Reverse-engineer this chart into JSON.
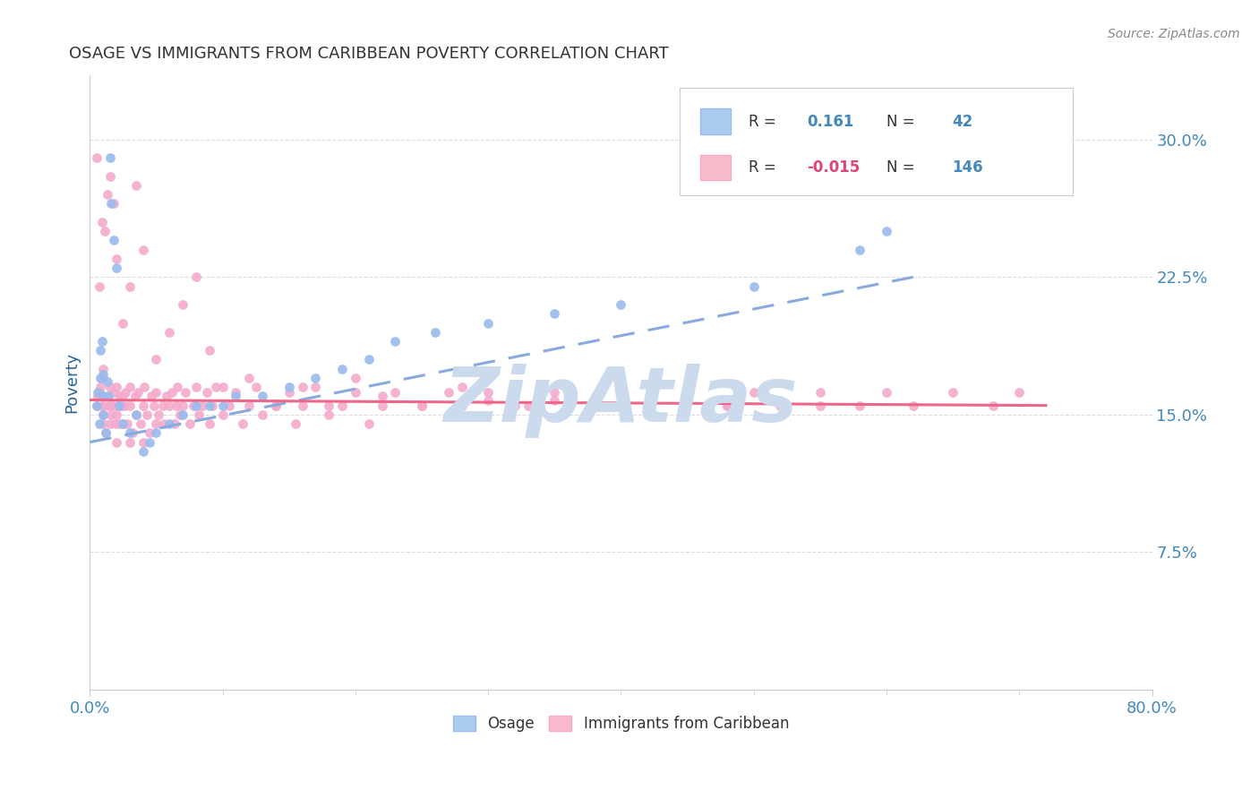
{
  "title": "OSAGE VS IMMIGRANTS FROM CARIBBEAN POVERTY CORRELATION CHART",
  "source": "Source: ZipAtlas.com",
  "ylabel": "Poverty",
  "ytick_labels": [
    "7.5%",
    "15.0%",
    "22.5%",
    "30.0%"
  ],
  "ytick_values": [
    0.075,
    0.15,
    0.225,
    0.3
  ],
  "xlim": [
    0.0,
    0.8
  ],
  "ylim": [
    0.0,
    0.335
  ],
  "title_color": "#333333",
  "source_color": "#888888",
  "axis_label_color": "#2A6496",
  "tick_color": "#4488BB",
  "blue_scatter_color": "#99BBEE",
  "pink_scatter_color": "#F4AACC",
  "blue_line_color": "#88AADD",
  "pink_line_color": "#EE6688",
  "blue_legend_fill": "#AACCEE",
  "pink_legend_fill": "#F9BBCC",
  "watermark_color": "#CCDAEE",
  "grid_color": "#DDDDDD",
  "spine_color": "#CCCCCC",
  "osage_x": [
    0.005,
    0.006,
    0.007,
    0.008,
    0.008,
    0.009,
    0.01,
    0.01,
    0.01,
    0.012,
    0.013,
    0.014,
    0.015,
    0.016,
    0.018,
    0.02,
    0.022,
    0.025,
    0.03,
    0.035,
    0.04,
    0.045,
    0.05,
    0.06,
    0.07,
    0.08,
    0.09,
    0.1,
    0.11,
    0.13,
    0.15,
    0.17,
    0.19,
    0.21,
    0.23,
    0.26,
    0.3,
    0.35,
    0.4,
    0.5,
    0.58,
    0.6
  ],
  "osage_y": [
    0.155,
    0.162,
    0.145,
    0.17,
    0.185,
    0.19,
    0.15,
    0.16,
    0.172,
    0.14,
    0.168,
    0.16,
    0.29,
    0.265,
    0.245,
    0.23,
    0.155,
    0.145,
    0.14,
    0.15,
    0.13,
    0.135,
    0.14,
    0.145,
    0.15,
    0.155,
    0.155,
    0.155,
    0.16,
    0.16,
    0.165,
    0.17,
    0.175,
    0.18,
    0.19,
    0.195,
    0.2,
    0.205,
    0.21,
    0.22,
    0.24,
    0.25
  ],
  "carib_x": [
    0.005,
    0.006,
    0.007,
    0.008,
    0.009,
    0.009,
    0.01,
    0.01,
    0.01,
    0.01,
    0.01,
    0.01,
    0.012,
    0.013,
    0.014,
    0.015,
    0.015,
    0.015,
    0.016,
    0.017,
    0.018,
    0.019,
    0.02,
    0.02,
    0.02,
    0.021,
    0.022,
    0.023,
    0.024,
    0.025,
    0.025,
    0.026,
    0.027,
    0.028,
    0.03,
    0.03,
    0.03,
    0.032,
    0.034,
    0.035,
    0.036,
    0.038,
    0.04,
    0.04,
    0.041,
    0.043,
    0.045,
    0.046,
    0.048,
    0.05,
    0.05,
    0.052,
    0.055,
    0.056,
    0.058,
    0.06,
    0.062,
    0.064,
    0.065,
    0.066,
    0.068,
    0.07,
    0.072,
    0.075,
    0.078,
    0.08,
    0.082,
    0.085,
    0.088,
    0.09,
    0.092,
    0.095,
    0.1,
    0.105,
    0.11,
    0.115,
    0.12,
    0.125,
    0.13,
    0.14,
    0.15,
    0.155,
    0.16,
    0.17,
    0.18,
    0.19,
    0.2,
    0.21,
    0.22,
    0.23,
    0.25,
    0.27,
    0.28,
    0.3,
    0.32,
    0.35,
    0.38,
    0.4,
    0.42,
    0.45,
    0.48,
    0.5,
    0.52,
    0.55,
    0.58,
    0.6,
    0.62,
    0.65,
    0.68,
    0.7,
    0.005,
    0.007,
    0.009,
    0.011,
    0.013,
    0.015,
    0.018,
    0.02,
    0.025,
    0.03,
    0.035,
    0.04,
    0.05,
    0.06,
    0.07,
    0.08,
    0.09,
    0.1,
    0.12,
    0.14,
    0.16,
    0.18,
    0.2,
    0.22,
    0.25,
    0.28,
    0.3,
    0.33,
    0.35,
    0.38,
    0.4,
    0.42,
    0.45,
    0.48,
    0.52,
    0.55
  ],
  "carib_y": [
    0.155,
    0.16,
    0.162,
    0.165,
    0.155,
    0.17,
    0.145,
    0.15,
    0.155,
    0.16,
    0.17,
    0.175,
    0.14,
    0.155,
    0.16,
    0.145,
    0.155,
    0.165,
    0.15,
    0.155,
    0.162,
    0.145,
    0.135,
    0.15,
    0.165,
    0.155,
    0.145,
    0.16,
    0.155,
    0.145,
    0.16,
    0.155,
    0.162,
    0.145,
    0.135,
    0.155,
    0.165,
    0.14,
    0.16,
    0.15,
    0.162,
    0.145,
    0.135,
    0.155,
    0.165,
    0.15,
    0.14,
    0.16,
    0.155,
    0.145,
    0.162,
    0.15,
    0.155,
    0.145,
    0.16,
    0.155,
    0.162,
    0.145,
    0.155,
    0.165,
    0.15,
    0.155,
    0.162,
    0.145,
    0.155,
    0.165,
    0.15,
    0.155,
    0.162,
    0.145,
    0.155,
    0.165,
    0.15,
    0.155,
    0.162,
    0.145,
    0.155,
    0.165,
    0.15,
    0.155,
    0.162,
    0.145,
    0.155,
    0.165,
    0.15,
    0.155,
    0.162,
    0.145,
    0.155,
    0.162,
    0.155,
    0.162,
    0.155,
    0.162,
    0.155,
    0.162,
    0.155,
    0.162,
    0.155,
    0.162,
    0.155,
    0.162,
    0.155,
    0.162,
    0.155,
    0.162,
    0.155,
    0.162,
    0.155,
    0.162,
    0.29,
    0.22,
    0.255,
    0.25,
    0.27,
    0.28,
    0.265,
    0.235,
    0.2,
    0.22,
    0.275,
    0.24,
    0.18,
    0.195,
    0.21,
    0.225,
    0.185,
    0.165,
    0.17,
    0.155,
    0.165,
    0.155,
    0.17,
    0.16,
    0.155,
    0.165,
    0.158,
    0.155,
    0.158,
    0.155,
    0.16,
    0.155,
    0.162,
    0.155,
    0.158,
    0.155
  ],
  "osage_line_x": [
    0.0,
    0.62
  ],
  "osage_line_y": [
    0.135,
    0.225
  ],
  "carib_line_x": [
    0.0,
    0.72
  ],
  "carib_line_y": [
    0.158,
    0.155
  ]
}
